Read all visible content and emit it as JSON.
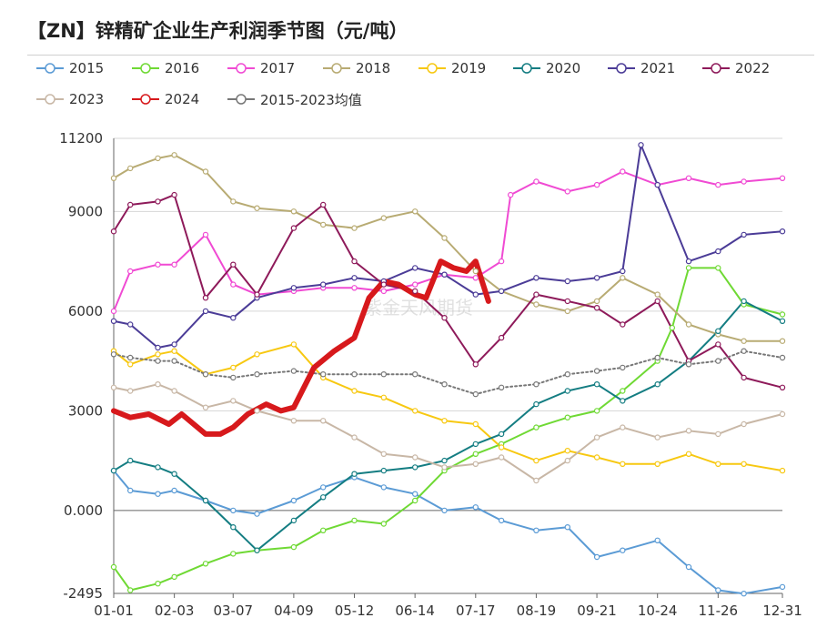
{
  "title": "【ZN】锌精矿企业生产利润季节图（元/吨）",
  "watermark": "紫金天风期货",
  "chart_data": {
    "type": "line",
    "title": "【ZN】锌精矿企业生产利润季节图（元/吨）",
    "xlabel": "",
    "ylabel": "",
    "x_ticks": [
      "01-01",
      "02-03",
      "03-07",
      "04-09",
      "05-12",
      "06-14",
      "07-17",
      "08-19",
      "09-21",
      "10-24",
      "11-26",
      "12-31"
    ],
    "y_ticks": [
      "11200",
      "9000",
      "6000",
      "3000",
      "0.000",
      "-2495"
    ],
    "ylim": [
      -2495,
      11200
    ],
    "grid": "horizontal",
    "legend_position": "top",
    "series": [
      {
        "name": "2015",
        "color": "#5b9bd5",
        "dashed": false,
        "width": 2,
        "x": [
          "01-01",
          "01-10",
          "01-25",
          "02-03",
          "02-20",
          "03-07",
          "03-20",
          "04-09",
          "04-25",
          "05-12",
          "05-28",
          "06-14",
          "06-30",
          "07-17",
          "07-31",
          "08-19",
          "09-05",
          "09-21",
          "10-05",
          "10-24",
          "11-10",
          "11-26",
          "12-10",
          "12-31"
        ],
        "values": [
          1200,
          600,
          500,
          600,
          300,
          0,
          -100,
          300,
          700,
          1000,
          700,
          500,
          0,
          100,
          -300,
          -600,
          -500,
          -1400,
          -1200,
          -900,
          -1700,
          -2400,
          -2500,
          -2300
        ]
      },
      {
        "name": "2016",
        "color": "#6fd934",
        "dashed": false,
        "width": 2,
        "x": [
          "01-01",
          "01-10",
          "01-25",
          "02-03",
          "02-20",
          "03-07",
          "03-20",
          "04-09",
          "04-25",
          "05-12",
          "05-28",
          "06-14",
          "06-30",
          "07-17",
          "07-31",
          "08-19",
          "09-05",
          "09-21",
          "10-05",
          "10-24",
          "11-01",
          "11-10",
          "11-26",
          "12-10",
          "12-31"
        ],
        "values": [
          -1700,
          -2400,
          -2200,
          -2000,
          -1600,
          -1300,
          -1200,
          -1100,
          -600,
          -300,
          -400,
          300,
          1200,
          1700,
          2000,
          2500,
          2800,
          3000,
          3600,
          4500,
          5500,
          7300,
          7300,
          6200,
          5900
        ]
      },
      {
        "name": "2017",
        "color": "#f04ad3",
        "dashed": false,
        "width": 2,
        "x": [
          "01-01",
          "01-10",
          "01-25",
          "02-03",
          "02-20",
          "03-07",
          "03-20",
          "04-09",
          "04-25",
          "05-12",
          "05-28",
          "06-14",
          "06-30",
          "07-17",
          "07-31",
          "08-05",
          "08-19",
          "09-05",
          "09-21",
          "10-05",
          "10-24",
          "11-10",
          "11-26",
          "12-10",
          "12-31"
        ],
        "values": [
          6000,
          7200,
          7400,
          7400,
          8300,
          6800,
          6500,
          6600,
          6700,
          6700,
          6600,
          6800,
          7100,
          7000,
          7500,
          9500,
          9900,
          9600,
          9800,
          10200,
          9800,
          10000,
          9800,
          9900,
          10000
        ]
      },
      {
        "name": "2018",
        "color": "#b8ab73",
        "dashed": false,
        "width": 2,
        "x": [
          "01-01",
          "01-10",
          "01-25",
          "02-03",
          "02-20",
          "03-07",
          "03-20",
          "04-09",
          "04-25",
          "05-12",
          "05-28",
          "06-14",
          "06-30",
          "07-17",
          "07-31",
          "08-19",
          "09-05",
          "09-21",
          "10-05",
          "10-24",
          "11-10",
          "11-26",
          "12-10",
          "12-31"
        ],
        "values": [
          10000,
          10300,
          10600,
          10700,
          10200,
          9300,
          9100,
          9000,
          8600,
          8500,
          8800,
          9000,
          8200,
          7200,
          6600,
          6200,
          6000,
          6300,
          7000,
          6500,
          5600,
          5300,
          5100,
          5100
        ]
      },
      {
        "name": "2019",
        "color": "#f7c811",
        "dashed": false,
        "width": 2,
        "x": [
          "01-01",
          "01-10",
          "01-25",
          "02-03",
          "02-20",
          "03-07",
          "03-20",
          "04-09",
          "04-25",
          "05-12",
          "05-28",
          "06-14",
          "06-30",
          "07-17",
          "07-31",
          "08-19",
          "09-05",
          "09-21",
          "10-05",
          "10-24",
          "11-10",
          "11-26",
          "12-10",
          "12-31"
        ],
        "values": [
          4800,
          4400,
          4700,
          4800,
          4100,
          4300,
          4700,
          5000,
          4000,
          3600,
          3400,
          3000,
          2700,
          2600,
          1900,
          1500,
          1800,
          1600,
          1400,
          1400,
          1700,
          1400,
          1400,
          1200
        ]
      },
      {
        "name": "2020",
        "color": "#147d82",
        "dashed": false,
        "width": 2,
        "x": [
          "01-01",
          "01-10",
          "01-25",
          "02-03",
          "02-20",
          "03-07",
          "03-20",
          "04-09",
          "04-25",
          "05-12",
          "05-28",
          "06-14",
          "06-30",
          "07-17",
          "07-31",
          "08-19",
          "09-05",
          "09-21",
          "10-05",
          "10-24",
          "11-10",
          "11-26",
          "12-10",
          "12-31"
        ],
        "values": [
          1200,
          1500,
          1300,
          1100,
          300,
          -500,
          -1200,
          -300,
          400,
          1100,
          1200,
          1300,
          1500,
          2000,
          2300,
          3200,
          3600,
          3800,
          3300,
          3800,
          4500,
          5400,
          6300,
          5700
        ]
      },
      {
        "name": "2021",
        "color": "#4b3c97",
        "dashed": false,
        "width": 2,
        "x": [
          "01-01",
          "01-10",
          "01-25",
          "02-03",
          "02-20",
          "03-07",
          "03-20",
          "04-09",
          "04-25",
          "05-12",
          "05-28",
          "06-14",
          "06-30",
          "07-17",
          "07-31",
          "08-19",
          "09-05",
          "09-21",
          "10-05",
          "10-15",
          "10-24",
          "11-10",
          "11-26",
          "12-10",
          "12-31"
        ],
        "values": [
          5700,
          5600,
          4900,
          5000,
          6000,
          5800,
          6400,
          6700,
          6800,
          7000,
          6900,
          7300,
          7100,
          6500,
          6600,
          7000,
          6900,
          7000,
          7200,
          11000,
          9800,
          7500,
          7800,
          8300,
          8400
        ]
      },
      {
        "name": "2022",
        "color": "#8e1a5a",
        "dashed": false,
        "width": 2,
        "x": [
          "01-01",
          "01-10",
          "01-25",
          "02-03",
          "02-20",
          "03-07",
          "03-20",
          "04-09",
          "04-25",
          "05-12",
          "05-28",
          "06-14",
          "06-30",
          "07-17",
          "07-31",
          "08-19",
          "09-05",
          "09-21",
          "10-05",
          "10-24",
          "11-10",
          "11-26",
          "12-10",
          "12-31"
        ],
        "values": [
          8400,
          9200,
          9300,
          9500,
          6400,
          7400,
          6500,
          8500,
          9200,
          7500,
          6800,
          6600,
          5800,
          4400,
          5200,
          6500,
          6300,
          6100,
          5600,
          6300,
          4500,
          5000,
          4000,
          3700
        ]
      },
      {
        "name": "2023",
        "color": "#c8b7a6",
        "dashed": false,
        "width": 2,
        "x": [
          "01-01",
          "01-10",
          "01-25",
          "02-03",
          "02-20",
          "03-07",
          "03-20",
          "04-09",
          "04-25",
          "05-12",
          "05-28",
          "06-14",
          "06-30",
          "07-17",
          "07-31",
          "08-19",
          "09-05",
          "09-21",
          "10-05",
          "10-24",
          "11-10",
          "11-26",
          "12-10",
          "12-31"
        ],
        "values": [
          3700,
          3600,
          3800,
          3600,
          3100,
          3300,
          3000,
          2700,
          2700,
          2200,
          1700,
          1600,
          1300,
          1400,
          1600,
          900,
          1500,
          2200,
          2500,
          2200,
          2400,
          2300,
          2600,
          2900
        ]
      },
      {
        "name": "2024",
        "color": "#d7191c",
        "dashed": false,
        "width": 6,
        "x": [
          "01-01",
          "01-10",
          "01-20",
          "01-31",
          "02-07",
          "02-20",
          "02-28",
          "03-07",
          "03-15",
          "03-25",
          "04-02",
          "04-09",
          "04-20",
          "05-01",
          "05-12",
          "05-20",
          "05-28",
          "06-05",
          "06-14",
          "06-20",
          "06-28",
          "07-05",
          "07-12",
          "07-17",
          "07-24"
        ],
        "values": [
          3000,
          2800,
          2900,
          2600,
          2900,
          2300,
          2300,
          2500,
          2900,
          3200,
          3000,
          3100,
          4300,
          4800,
          5200,
          6400,
          6900,
          6800,
          6500,
          6400,
          7500,
          7300,
          7200,
          7500,
          6300
        ]
      },
      {
        "name": "2015-2023均值",
        "color": "#777777",
        "dashed": true,
        "width": 2,
        "x": [
          "01-01",
          "01-10",
          "01-25",
          "02-03",
          "02-20",
          "03-07",
          "03-20",
          "04-09",
          "04-25",
          "05-12",
          "05-28",
          "06-14",
          "06-30",
          "07-17",
          "07-31",
          "08-19",
          "09-05",
          "09-21",
          "10-05",
          "10-24",
          "11-10",
          "11-26",
          "12-10",
          "12-31"
        ],
        "values": [
          4700,
          4600,
          4500,
          4500,
          4100,
          4000,
          4100,
          4200,
          4100,
          4100,
          4100,
          4100,
          3800,
          3500,
          3700,
          3800,
          4100,
          4200,
          4300,
          4600,
          4400,
          4500,
          4800,
          4600
        ]
      }
    ]
  }
}
